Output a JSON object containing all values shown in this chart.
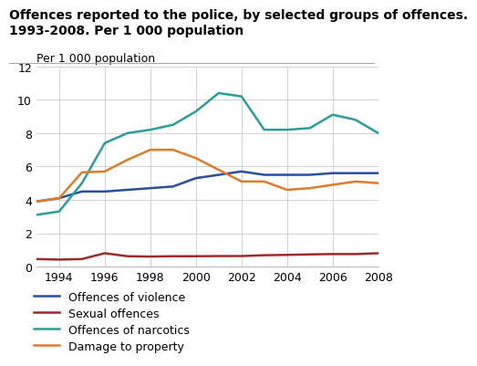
{
  "title_line1": "Offences reported to the police, by selected groups of offences.",
  "title_line2": "1993-2008. Per 1 000 population",
  "ylabel": "Per 1 000 population",
  "years": [
    1993,
    1994,
    1995,
    1996,
    1997,
    1998,
    1999,
    2000,
    2001,
    2002,
    2003,
    2004,
    2005,
    2006,
    2007,
    2008
  ],
  "series": {
    "Offences of violence": {
      "values": [
        3.9,
        4.1,
        4.5,
        4.5,
        4.6,
        4.7,
        4.8,
        5.3,
        5.5,
        5.7,
        5.5,
        5.5,
        5.5,
        5.6,
        5.6,
        5.6
      ],
      "color": "#2b4d9e",
      "linewidth": 1.8
    },
    "Sexual offences": {
      "values": [
        0.45,
        0.42,
        0.45,
        0.8,
        0.62,
        0.6,
        0.62,
        0.62,
        0.63,
        0.63,
        0.68,
        0.7,
        0.73,
        0.75,
        0.75,
        0.8
      ],
      "color": "#9e2b2b",
      "linewidth": 1.8
    },
    "Offences of narcotics": {
      "values": [
        3.1,
        3.3,
        5.0,
        7.4,
        8.0,
        8.2,
        8.5,
        9.3,
        10.4,
        10.2,
        8.2,
        8.2,
        8.3,
        9.1,
        8.8,
        8.0
      ],
      "color": "#2b9e9a",
      "linewidth": 1.8
    },
    "Damage to property": {
      "values": [
        3.9,
        4.1,
        5.65,
        5.7,
        6.4,
        7.0,
        7.0,
        6.5,
        5.8,
        5.1,
        5.1,
        4.6,
        4.7,
        4.9,
        5.1,
        5.0
      ],
      "color": "#e07b2a",
      "linewidth": 1.8
    }
  },
  "ylim": [
    0,
    12
  ],
  "yticks": [
    0,
    2,
    4,
    6,
    8,
    10,
    12
  ],
  "xlim": [
    1993,
    2008
  ],
  "xticks": [
    1994,
    1996,
    1998,
    2000,
    2002,
    2004,
    2006,
    2008
  ],
  "background_color": "#ffffff",
  "grid_color": "#cccccc",
  "title_fontsize": 10,
  "axis_label_fontsize": 9,
  "tick_fontsize": 9,
  "legend_fontsize": 9
}
